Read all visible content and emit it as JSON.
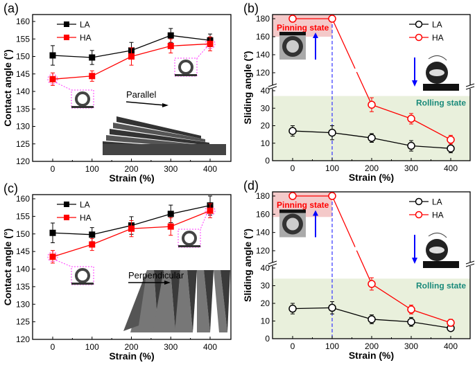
{
  "colors": {
    "LA": "#000000",
    "HA": "#ff0000",
    "pinning_fill": "#f4c9c9",
    "rolling_fill": "#e9f0dc",
    "pinning_text": "#ff0000",
    "rolling_text": "#1a8a7a",
    "dashed_line": "#3333ff",
    "drop_outline": "#ff33ff"
  },
  "chart_data": [
    {
      "panel_label": "(a)",
      "type": "line",
      "xlabel": "Strain (%)",
      "ylabel": "Contact angle (°)",
      "x": [
        0,
        100,
        200,
        300,
        400
      ],
      "xlim": [
        -50,
        450
      ],
      "ylim": [
        120,
        162
      ],
      "xticks": [
        "0",
        "100",
        "200",
        "300",
        "400"
      ],
      "yticks": [
        "120",
        "125",
        "130",
        "135",
        "140",
        "145",
        "150",
        "155",
        "160"
      ],
      "marker": "filled-square",
      "legend": "top-left",
      "series": [
        {
          "name": "LA",
          "values": [
            150.3,
            149.7,
            151.7,
            156.0,
            154.6
          ],
          "errors": [
            2.8,
            2.0,
            2.3,
            2.0,
            1.8
          ]
        },
        {
          "name": "HA",
          "values": [
            143.5,
            144.4,
            150.0,
            153.0,
            153.6
          ],
          "errors": [
            1.8,
            1.5,
            2.5,
            2.0,
            2.0
          ]
        }
      ],
      "inset_label": "Parallel"
    },
    {
      "panel_label": "(b)",
      "type": "line",
      "xlabel": "Strain (%)",
      "ylabel": "Sliding angle (°)",
      "x": [
        0,
        100,
        200,
        300,
        400
      ],
      "xlim": [
        -50,
        450
      ],
      "ylim_lower": [
        0,
        40
      ],
      "ylim_upper": [
        110,
        183
      ],
      "broken_axis": true,
      "xticks": [
        "0",
        "100",
        "200",
        "300",
        "400"
      ],
      "yticks": [
        "0",
        "10",
        "20",
        "30",
        "40",
        "120",
        "140",
        "160",
        "180"
      ],
      "marker": "open-circle",
      "legend": "top-right",
      "series": [
        {
          "name": "LA",
          "values": [
            17,
            16,
            13,
            8.5,
            7
          ],
          "errors": [
            3,
            4,
            2.5,
            3,
            2.5
          ]
        },
        {
          "name": "HA",
          "values": [
            180,
            180,
            32,
            24,
            12
          ],
          "errors": [
            0,
            0,
            4,
            3,
            2.5
          ]
        }
      ],
      "regions": {
        "pinning": {
          "label": "Pinning state",
          "y": [
            160,
            180
          ]
        },
        "rolling": {
          "label": "Rolling state",
          "y": [
            0,
            37
          ]
        }
      },
      "dashed_x": 100
    },
    {
      "panel_label": "(c)",
      "type": "line",
      "xlabel": "Strain (%)",
      "ylabel": "Contact angle (°)",
      "x": [
        0,
        100,
        200,
        300,
        400
      ],
      "xlim": [
        -50,
        450
      ],
      "ylim": [
        120,
        162
      ],
      "xticks": [
        "0",
        "100",
        "200",
        "300",
        "400"
      ],
      "yticks": [
        "120",
        "125",
        "130",
        "135",
        "140",
        "145",
        "150",
        "155",
        "160"
      ],
      "marker": "filled-square",
      "legend": "top-left",
      "series": [
        {
          "name": "LA",
          "values": [
            150.3,
            149.8,
            152.4,
            155.7,
            158.1
          ],
          "errors": [
            2.8,
            2.0,
            2.5,
            2.5,
            2.7
          ]
        },
        {
          "name": "HA",
          "values": [
            143.5,
            147.0,
            151.5,
            152.1,
            156.6
          ],
          "errors": [
            1.8,
            1.7,
            2.3,
            2.5,
            2.0
          ]
        }
      ],
      "inset_label": "Perpendicular"
    },
    {
      "panel_label": "(d)",
      "type": "line",
      "xlabel": "Strain (%)",
      "ylabel": "Sliding angle (°)",
      "x": [
        0,
        100,
        200,
        300,
        400
      ],
      "xlim": [
        -50,
        450
      ],
      "ylim_lower": [
        0,
        40
      ],
      "ylim_upper": [
        110,
        183
      ],
      "broken_axis": true,
      "xticks": [
        "0",
        "100",
        "200",
        "300",
        "400"
      ],
      "yticks": [
        "0",
        "10",
        "20",
        "30",
        "40",
        "120",
        "140",
        "160",
        "180"
      ],
      "marker": "open-circle",
      "legend": "top-right",
      "series": [
        {
          "name": "LA",
          "values": [
            17,
            17.5,
            11,
            9.5,
            6
          ],
          "errors": [
            3,
            3.5,
            2.5,
            2.5,
            1.5
          ]
        },
        {
          "name": "HA",
          "values": [
            180,
            180,
            31,
            16.5,
            9
          ],
          "errors": [
            0,
            0,
            3.5,
            2.5,
            2
          ]
        }
      ],
      "regions": {
        "pinning": {
          "label": "Pinning state",
          "y": [
            157,
            180
          ]
        },
        "rolling": {
          "label": "Rolling state",
          "y": [
            0,
            34
          ]
        }
      },
      "dashed_x": 100
    }
  ]
}
